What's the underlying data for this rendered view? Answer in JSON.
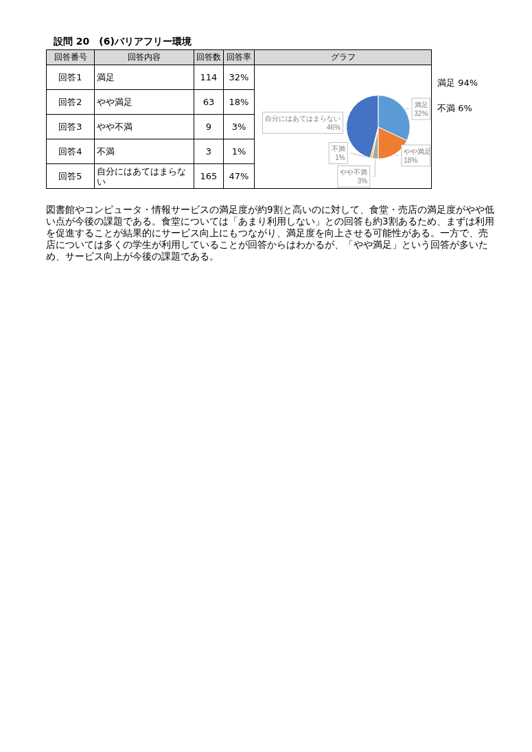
{
  "chart_data": {
    "type": "pie",
    "title": "設問 20　(6)バリアフリー環境",
    "categories": [
      "満足",
      "やや満足",
      "やや不満",
      "不満",
      "自分にはあてはまらない"
    ],
    "values": [
      32,
      18,
      3,
      1,
      46
    ],
    "colors": [
      "#5b9bd5",
      "#ed7d31",
      "#a5a5a5",
      "#ffc000",
      "#4472c4"
    ],
    "value_labels": [
      "32%",
      "18%",
      "3%",
      "1%",
      "46%"
    ],
    "annotations": [
      "回答番号",
      "回答内容",
      "回答数",
      "回答率",
      "グラフ",
      "114",
      "63",
      "9",
      "3",
      "165",
      "回答1",
      "回答2",
      "回答3",
      "回答4",
      "回答5",
      "32%",
      "18%",
      "3%",
      "1%",
      "47%",
      "満足 94%",
      "不満 6%",
      "図書館やコンピュータ・情報サービスの満足度が約9割と高いのに対して、食堂・売店の満足度がやや低い点が今後の課題である。食堂については「あまり利用しない」との回答も約3割あるため、まずは利用を促進することが結果的にサービス向上にもつながり、満足度を向上させる可能性がある。一方で、売店については多くの学生が利用していることが回答からはわかるが、「やや満足」という回答が多いため、サービス向上が今後の課題である。"
    ]
  }
}
